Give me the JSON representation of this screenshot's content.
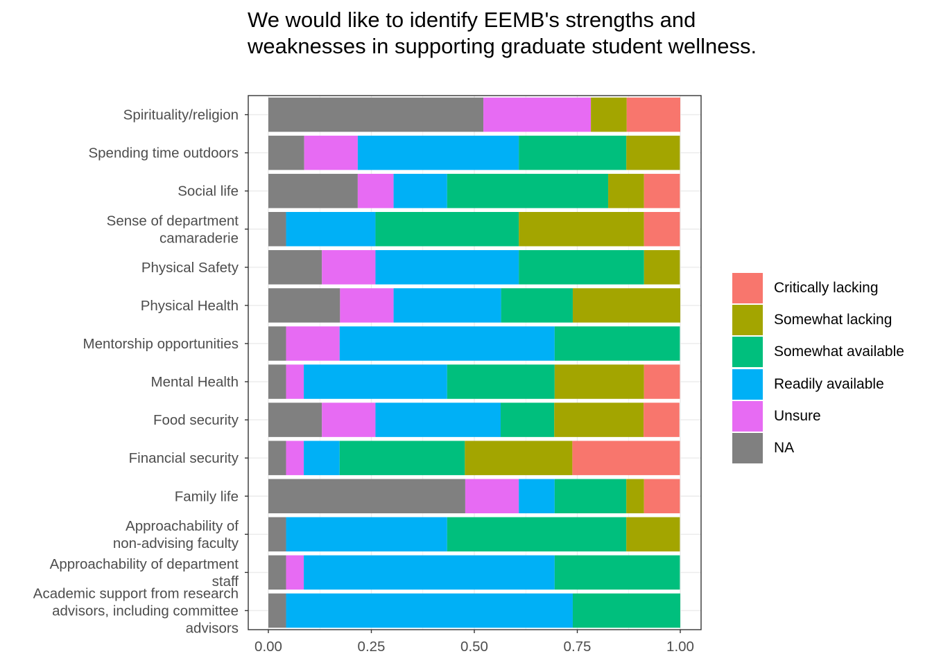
{
  "chart_data": {
    "type": "bar",
    "orientation": "horizontal",
    "stacked": true,
    "title": "We would like to identify EEMB's strengths and weaknesses in supporting graduate student wellness.",
    "xlabel": "",
    "ylabel": "",
    "xlim": [
      0,
      1
    ],
    "xticks": [
      "0.00",
      "0.25",
      "0.50",
      "0.75",
      "1.00"
    ],
    "grid": true,
    "legend_position": "right",
    "categories": [
      "Spirituality/religion",
      "Spending time outdoors",
      "Social life",
      "Sense of department\ncamaraderie",
      "Physical Safety",
      "Physical Health",
      "Mentorship opportunities",
      "Mental Health",
      "Food security",
      "Financial security",
      "Family life",
      "Approachability of\nnon-advising faculty",
      "Approachability of department\nstaff",
      "Academic support from research\nadvisors, including committee\nadvisors"
    ],
    "legend": [
      "Critically lacking",
      "Somewhat lacking",
      "Somewhat available",
      "Readily available",
      "Unsure",
      "NA"
    ],
    "stack_order": [
      "NA",
      "Unsure",
      "Readily available",
      "Somewhat available",
      "Somewhat lacking",
      "Critically lacking"
    ],
    "colors": {
      "Critically lacking": "#F8766D",
      "Somewhat lacking": "#A3A500",
      "Somewhat available": "#00BF7D",
      "Readily available": "#00B0F6",
      "Unsure": "#E76BF3",
      "NA": "#808080"
    },
    "series": [
      {
        "name": "NA",
        "values": [
          0.522,
          0.087,
          0.217,
          0.043,
          0.13,
          0.174,
          0.043,
          0.043,
          0.13,
          0.043,
          0.478,
          0.043,
          0.043,
          0.043
        ]
      },
      {
        "name": "Unsure",
        "values": [
          0.261,
          0.13,
          0.087,
          0.0,
          0.13,
          0.13,
          0.13,
          0.043,
          0.13,
          0.043,
          0.13,
          0.0,
          0.043,
          0.0
        ]
      },
      {
        "name": "Readily available",
        "values": [
          0.0,
          0.391,
          0.13,
          0.217,
          0.348,
          0.261,
          0.522,
          0.348,
          0.304,
          0.087,
          0.087,
          0.391,
          0.609,
          0.696
        ]
      },
      {
        "name": "Somewhat available",
        "values": [
          0.0,
          0.261,
          0.391,
          0.348,
          0.304,
          0.174,
          0.304,
          0.261,
          0.13,
          0.304,
          0.174,
          0.435,
          0.304,
          0.261
        ]
      },
      {
        "name": "Somewhat lacking",
        "values": [
          0.087,
          0.13,
          0.087,
          0.304,
          0.087,
          0.261,
          0.0,
          0.217,
          0.217,
          0.261,
          0.043,
          0.13,
          0.0,
          0.0
        ]
      },
      {
        "name": "Critically lacking",
        "values": [
          0.13,
          0.0,
          0.087,
          0.087,
          0.0,
          0.0,
          0.0,
          0.087,
          0.087,
          0.261,
          0.087,
          0.0,
          0.0,
          0.0
        ]
      }
    ]
  }
}
